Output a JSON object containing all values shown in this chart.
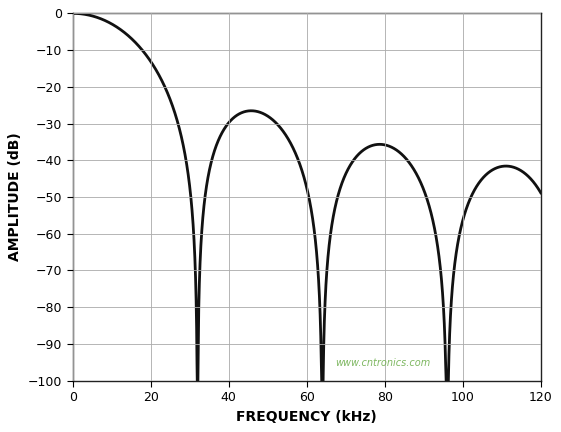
{
  "xlabel": "FREQUENCY (kHz)",
  "ylabel": "AMPLITUDE (dB)",
  "xlim": [
    0,
    120
  ],
  "ylim": [
    -100,
    0
  ],
  "xticks": [
    0,
    20,
    40,
    60,
    80,
    100,
    120
  ],
  "yticks": [
    0,
    -10,
    -20,
    -30,
    -40,
    -50,
    -60,
    -70,
    -80,
    -90,
    -100
  ],
  "line_color": "#111111",
  "line_width": 2.0,
  "grid_color": "#aaaaaa",
  "background_color": "#ffffff",
  "null_freq_khz": 32.0,
  "sinc_order": 2,
  "freq_max_khz": 120.0,
  "clip_floor": -100,
  "watermark": "www.cntronics.com",
  "watermark_color": "#70b050",
  "xlabel_fontsize": 10,
  "ylabel_fontsize": 10,
  "tick_fontsize": 9,
  "fig_width": 5.61,
  "fig_height": 4.32,
  "dpi": 100
}
